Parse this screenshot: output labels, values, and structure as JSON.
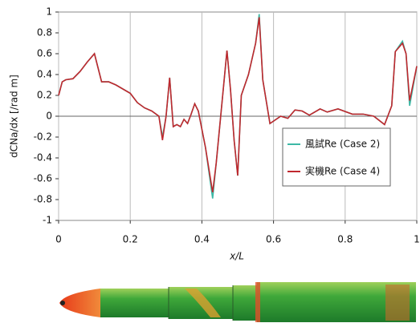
{
  "chart_data": {
    "type": "line",
    "xlabel": "x/L",
    "ylabel": "dCNa/dx [/rad m]",
    "x": [
      0,
      0.01,
      0.02,
      0.04,
      0.06,
      0.08,
      0.1,
      0.12,
      0.14,
      0.16,
      0.2,
      0.22,
      0.24,
      0.26,
      0.28,
      0.29,
      0.3,
      0.31,
      0.32,
      0.33,
      0.34,
      0.35,
      0.36,
      0.37,
      0.38,
      0.39,
      0.41,
      0.43,
      0.44,
      0.47,
      0.48,
      0.49,
      0.5,
      0.51,
      0.53,
      0.55,
      0.56,
      0.57,
      0.59,
      0.62,
      0.64,
      0.66,
      0.68,
      0.7,
      0.73,
      0.75,
      0.78,
      0.82,
      0.85,
      0.88,
      0.91,
      0.93,
      0.94,
      0.96,
      0.97,
      0.98,
      1.0
    ],
    "series": [
      {
        "name": "風試Re (Case 2)",
        "color": "#3cb8a5",
        "values": [
          0.2,
          0.33,
          0.35,
          0.36,
          0.43,
          0.52,
          0.6,
          0.33,
          0.33,
          0.3,
          0.22,
          0.13,
          0.08,
          0.05,
          0.0,
          -0.2,
          0.0,
          0.37,
          -0.1,
          -0.08,
          -0.1,
          -0.03,
          -0.07,
          0.02,
          0.12,
          0.05,
          -0.3,
          -0.79,
          -0.45,
          0.63,
          0.25,
          -0.23,
          -0.57,
          0.2,
          0.4,
          0.7,
          0.98,
          0.35,
          -0.07,
          0.0,
          -0.02,
          0.06,
          0.05,
          0.01,
          0.07,
          0.04,
          0.07,
          0.02,
          0.02,
          0.0,
          -0.08,
          0.1,
          0.62,
          0.72,
          0.6,
          0.1,
          0.48
        ]
      },
      {
        "name": "実機Re (Case 4)",
        "color": "#c0282e",
        "values": [
          0.2,
          0.33,
          0.35,
          0.36,
          0.43,
          0.52,
          0.6,
          0.33,
          0.33,
          0.3,
          0.22,
          0.13,
          0.08,
          0.05,
          0.0,
          -0.23,
          0.0,
          0.37,
          -0.1,
          -0.08,
          -0.1,
          -0.03,
          -0.07,
          0.02,
          0.12,
          0.05,
          -0.3,
          -0.73,
          -0.45,
          0.63,
          0.25,
          -0.23,
          -0.57,
          0.2,
          0.4,
          0.7,
          0.95,
          0.35,
          -0.07,
          0.0,
          -0.02,
          0.06,
          0.05,
          0.01,
          0.07,
          0.04,
          0.07,
          0.02,
          0.02,
          0.0,
          -0.08,
          0.1,
          0.62,
          0.7,
          0.6,
          0.15,
          0.48
        ]
      }
    ],
    "xlim": [
      0,
      1
    ],
    "xticks": [
      0,
      0.2,
      0.4,
      0.6,
      0.8,
      1
    ],
    "ylim": [
      -1,
      1
    ],
    "yticks": [
      -1,
      -0.8,
      -0.6,
      -0.4,
      -0.2,
      0,
      0.2,
      0.4,
      0.6,
      0.8,
      1
    ],
    "grid": true
  }
}
